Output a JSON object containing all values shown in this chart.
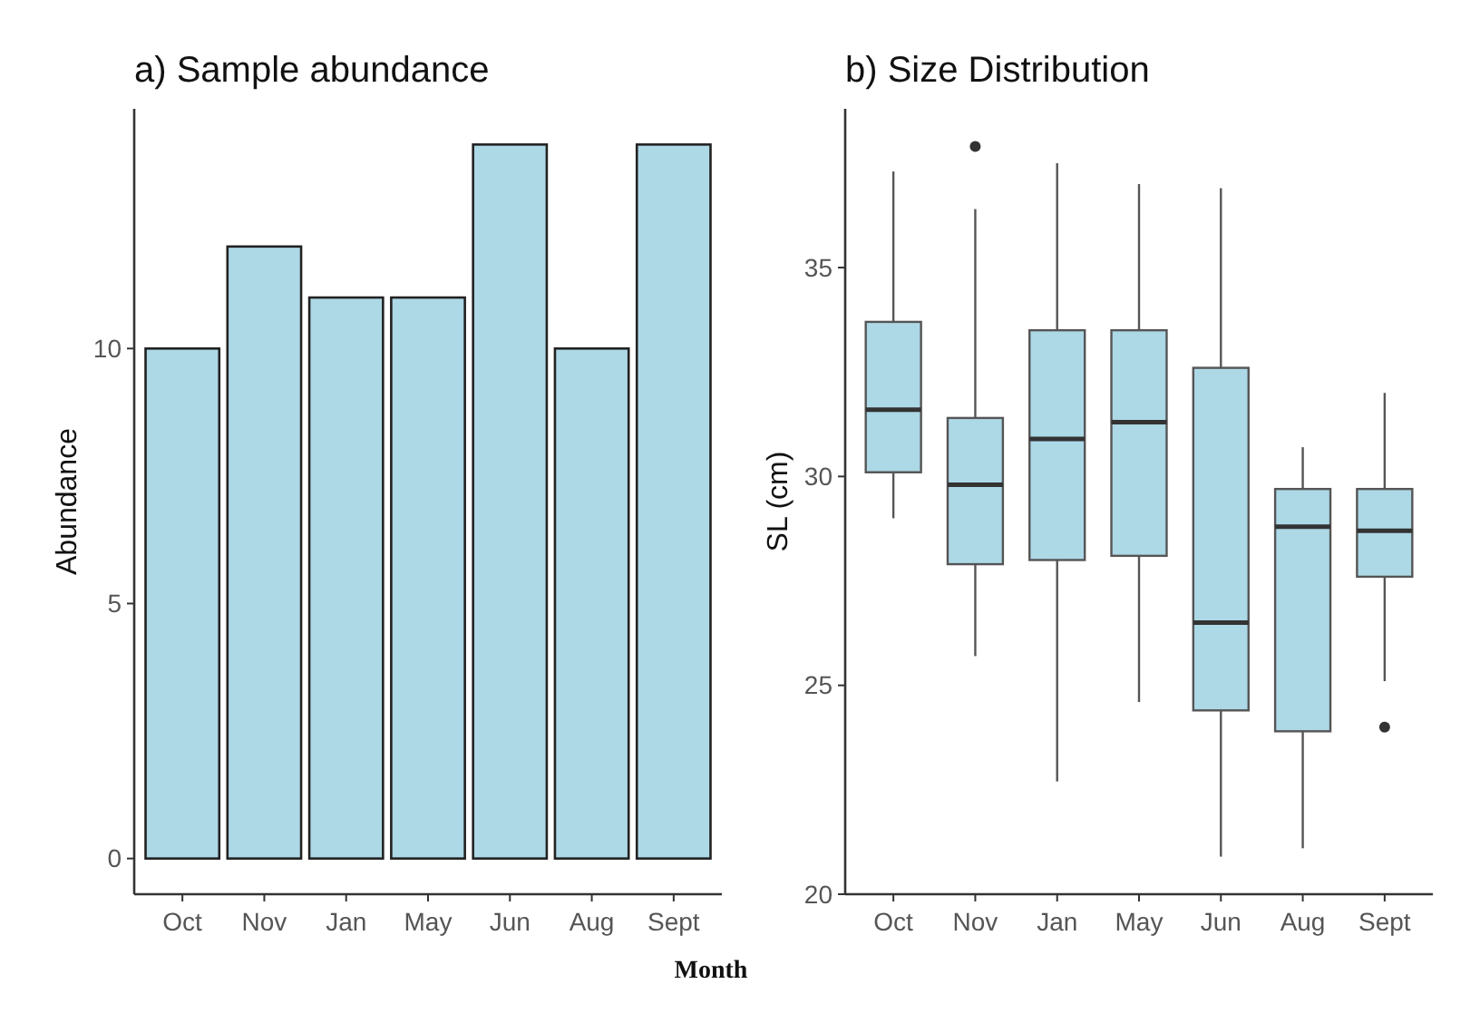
{
  "chart_data": [
    {
      "type": "bar",
      "title": "a) Sample abundance",
      "xlabel": "Month",
      "ylabel": "Abundance",
      "categories": [
        "Oct",
        "Nov",
        "Jan",
        "May",
        "Jun",
        "Aug",
        "Sept"
      ],
      "values": [
        10,
        12,
        11,
        11,
        14,
        10,
        14
      ],
      "color": "#add8e6",
      "ylim": [
        -0.7,
        14.7
      ],
      "yticks": [
        0,
        5,
        10
      ],
      "grid": false
    },
    {
      "type": "box",
      "title": "b) Size Distribution",
      "ylabel": "SL (cm)",
      "categories": [
        "Oct",
        "Nov",
        "Jan",
        "May",
        "Jun",
        "Aug",
        "Sept"
      ],
      "color": "#add8e6",
      "ylim": [
        20,
        38.8
      ],
      "yticks": [
        20,
        25,
        30,
        35
      ],
      "grid": false,
      "boxes": [
        {
          "low": 29.0,
          "q1": 30.1,
          "median": 31.6,
          "q3": 33.7,
          "high": 37.3
        },
        {
          "low": 25.7,
          "q1": 27.9,
          "median": 29.8,
          "q3": 31.4,
          "high": 36.4,
          "outliers": [
            37.9
          ]
        },
        {
          "low": 22.7,
          "q1": 28.0,
          "median": 30.9,
          "q3": 33.5,
          "high": 37.5
        },
        {
          "low": 24.6,
          "q1": 28.1,
          "median": 31.3,
          "q3": 33.5,
          "high": 37.0
        },
        {
          "low": 20.9,
          "q1": 24.4,
          "median": 26.5,
          "q3": 32.6,
          "high": 36.9
        },
        {
          "low": 21.1,
          "q1": 23.9,
          "median": 28.8,
          "q3": 29.7,
          "high": 30.7
        },
        {
          "low": 25.1,
          "q1": 27.6,
          "median": 28.7,
          "q3": 29.7,
          "high": 32.0,
          "outliers": [
            24.0
          ]
        }
      ]
    }
  ]
}
